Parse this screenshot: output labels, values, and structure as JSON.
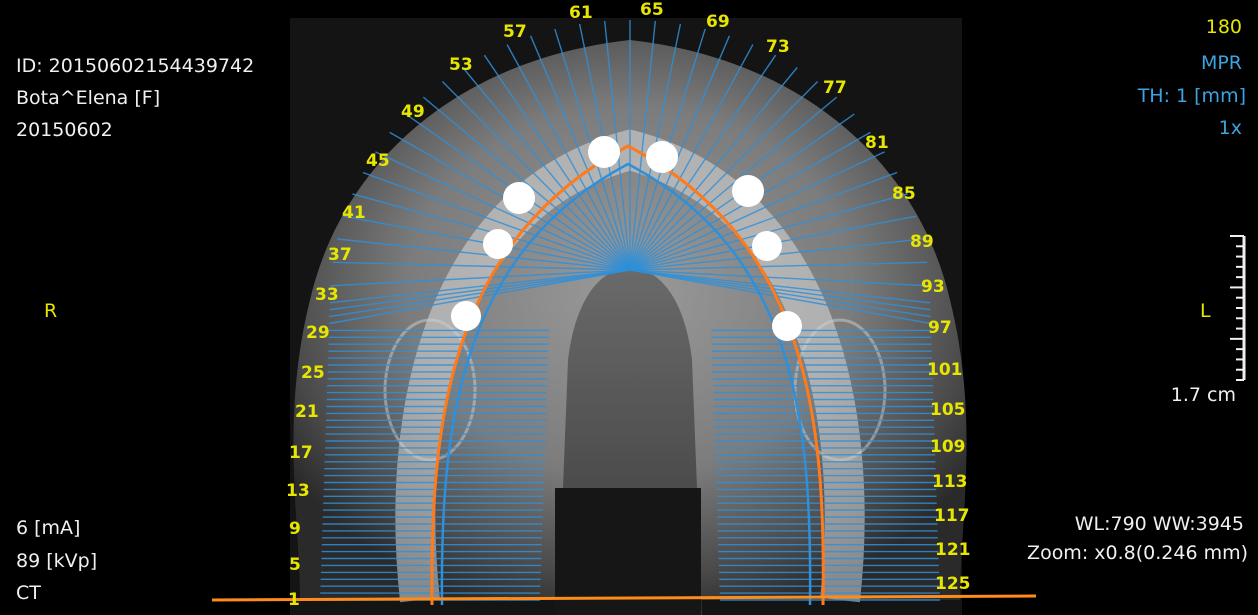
{
  "patient": {
    "id": "ID: 20150602154439742",
    "name": "Bota^Elena [F]",
    "date": "20150602"
  },
  "view": {
    "slice": "180",
    "mode": "MPR",
    "thickness": "TH: 1 [mm]",
    "magnification": "1x",
    "orientation_left": "L",
    "orientation_right": "R",
    "scale_label": "1.7 cm"
  },
  "acquisition": {
    "current": "6 [mA]",
    "voltage": "89 [kVp]",
    "modality": "CT"
  },
  "display": {
    "window": "WL:790 WW:3945",
    "zoom": "Zoom: x0.8(0.246 mm)"
  },
  "slice_numbers": [
    "1",
    "5",
    "9",
    "13",
    "17",
    "21",
    "25",
    "29",
    "33",
    "37",
    "41",
    "45",
    "49",
    "53",
    "57",
    "61",
    "65",
    "69",
    "73",
    "77",
    "81",
    "85",
    "89",
    "93",
    "97",
    "101",
    "105",
    "109",
    "113",
    "117",
    "121",
    "125"
  ],
  "colors": {
    "text": "#f0f0f0",
    "annotation": "#e6e600",
    "info_blue": "#3ba3e0",
    "curve": "#ff7a1a",
    "cross_lines": "#2f8fd8"
  }
}
